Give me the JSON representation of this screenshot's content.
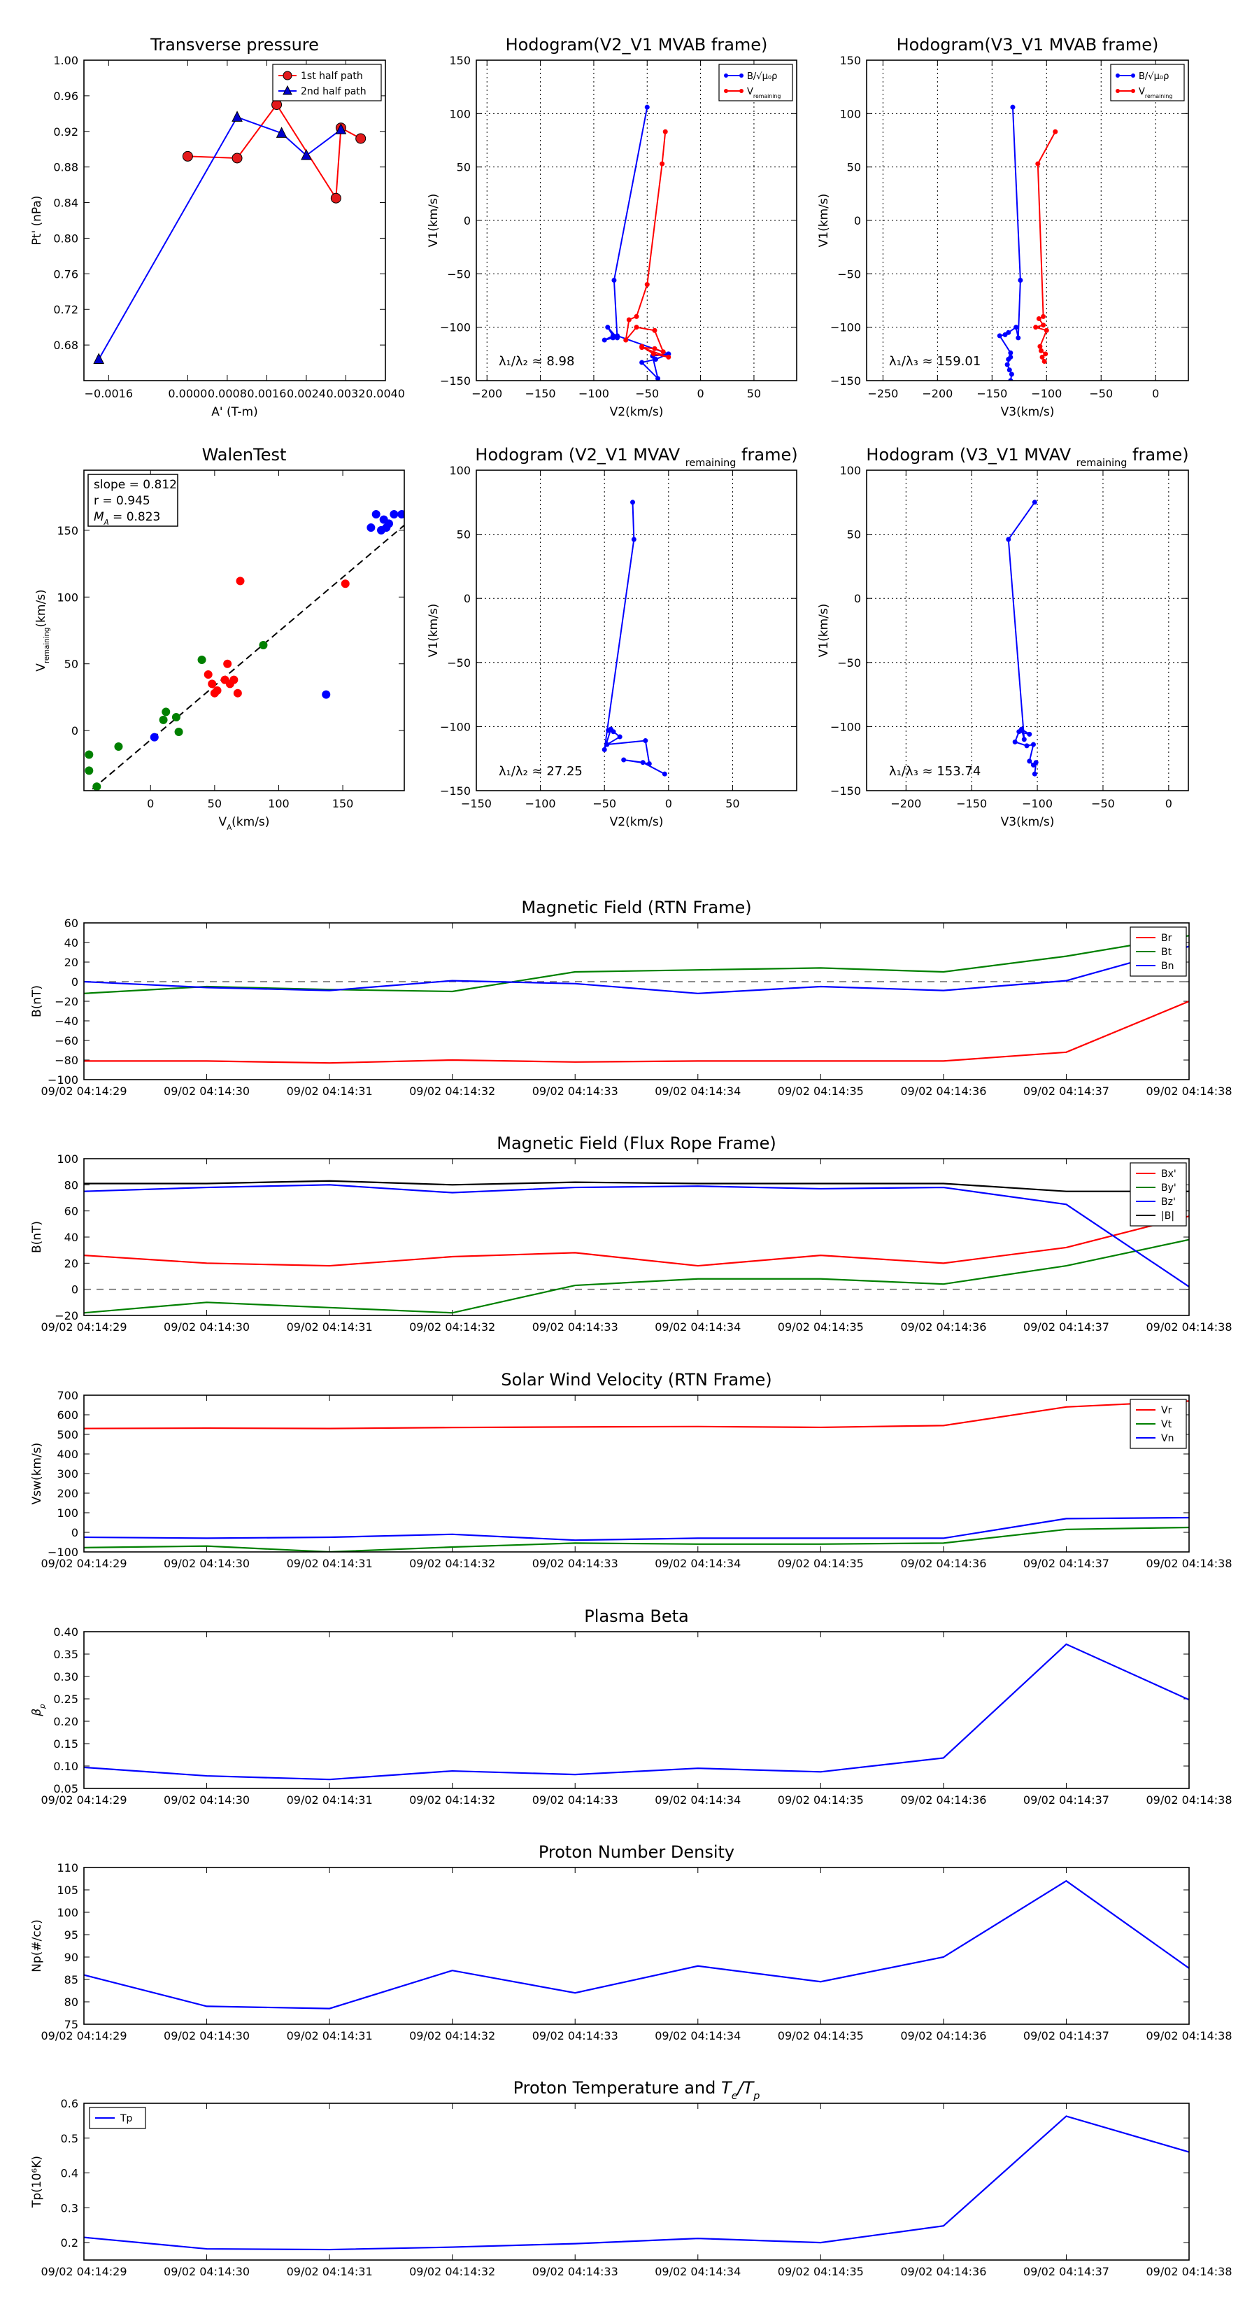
{
  "colors": {
    "red": "#ff0000",
    "green": "#008000",
    "blue": "#0000ff",
    "black": "#000000",
    "marker_red": "#e31a1c",
    "marker_blue": "#0000cc"
  },
  "time_labels": [
    "09/02 04:14:29",
    "09/02 04:14:30",
    "09/02 04:14:31",
    "09/02 04:14:32",
    "09/02 04:14:33",
    "09/02 04:14:34",
    "09/02 04:14:35",
    "09/02 04:14:36",
    "09/02 04:14:37",
    "09/02 04:14:38"
  ],
  "chart_data": [
    {
      "id": "transverse",
      "type": "line",
      "title": "Transverse pressure",
      "xlabel": "A' (T-m)",
      "ylabel": "Pt' (nPa)",
      "xlim": [
        -0.0021,
        0.004
      ],
      "ylim": [
        0.64,
        1.0
      ],
      "xticks": [
        -0.0016,
        0.0,
        0.0008,
        0.0016,
        0.0024,
        0.0032,
        0.004
      ],
      "xtick_labels": [
        "−0.0016",
        "0.0000",
        "0.0008",
        "0.0016",
        "0.0024",
        "0.0032",
        "0.0040"
      ],
      "yticks": [
        0.68,
        0.72,
        0.76,
        0.8,
        0.84,
        0.88,
        0.92,
        0.96,
        1.0
      ],
      "ytick_labels": [
        "0.68",
        "0.72",
        "0.76",
        "0.80",
        "0.84",
        "0.88",
        "0.92",
        "0.96",
        "1.00"
      ],
      "legend": "upper right",
      "series": [
        {
          "name": "1st half path",
          "color": "red",
          "marker": "circle",
          "x": [
            0.0,
            0.001,
            0.0018,
            0.003,
            0.0031,
            0.0035
          ],
          "y": [
            0.892,
            0.89,
            0.95,
            0.845,
            0.924,
            0.912
          ]
        },
        {
          "name": "2nd half path",
          "color": "blue",
          "marker": "triangle",
          "x": [
            -0.0018,
            0.001,
            0.0019,
            0.0024,
            0.0031
          ],
          "y": [
            0.664,
            0.936,
            0.918,
            0.893,
            0.922
          ]
        }
      ]
    },
    {
      "id": "hodo_v2_mvab",
      "type": "line",
      "title": "Hodogram(V2_V1 MVAB frame)",
      "xlabel": "V2(km/s)",
      "ylabel": "V1(km/s)",
      "xlim": [
        -210,
        90
      ],
      "ylim": [
        -150,
        150
      ],
      "xticks": [
        -200,
        -150,
        -100,
        -50,
        0,
        50
      ],
      "xtick_labels": [
        "−200",
        "−150",
        "−100",
        "−50",
        "0",
        "50"
      ],
      "yticks": [
        -150,
        -100,
        -50,
        0,
        50,
        100,
        150
      ],
      "ytick_labels": [
        "−150",
        "−100",
        "−50",
        "0",
        "50",
        "100",
        "150"
      ],
      "grid": true,
      "legend": "upper right",
      "legend_labels": [
        "B/√μ₀ρ",
        "V"
      ],
      "legend_label_subs": [
        "",
        "remaining"
      ],
      "annotation": "λ₁/λ₂ ≈ 8.98",
      "series": [
        {
          "name": "B/√μ₀ρ",
          "color": "blue",
          "marker": "dot",
          "x": [
            -50,
            -81,
            -78,
            -87,
            -82,
            -90,
            -82,
            -78,
            -30,
            -42,
            -55,
            -40,
            -45,
            -30
          ],
          "y": [
            106,
            -56,
            -110,
            -100,
            -108,
            -112,
            -110,
            -108,
            -125,
            -130,
            -133,
            -148,
            -127,
            -125
          ]
        },
        {
          "name": "Vremaining",
          "color": "red",
          "marker": "dot",
          "x": [
            -33,
            -36,
            -50,
            -60,
            -67,
            -70,
            -60,
            -43,
            -35,
            -43,
            -55,
            -30,
            -44,
            -55
          ],
          "y": [
            83,
            53,
            -60,
            -90,
            -93,
            -112,
            -100,
            -103,
            -123,
            -120,
            -119,
            -128,
            -125,
            -118
          ]
        }
      ]
    },
    {
      "id": "hodo_v3_mvab",
      "type": "line",
      "title": "Hodogram(V3_V1 MVAB frame)",
      "xlabel": "V3(km/s)",
      "ylabel": "V1(km/s)",
      "xlim": [
        -265,
        30
      ],
      "ylim": [
        -150,
        150
      ],
      "xticks": [
        -250,
        -200,
        -150,
        -100,
        -50,
        0
      ],
      "xtick_labels": [
        "−250",
        "−200",
        "−150",
        "−100",
        "−50",
        "0"
      ],
      "yticks": [
        -150,
        -100,
        -50,
        0,
        50,
        100,
        150
      ],
      "ytick_labels": [
        "−150",
        "−100",
        "−50",
        "0",
        "50",
        "100",
        "150"
      ],
      "grid": true,
      "legend": "upper right",
      "legend_labels": [
        "B/√μ₀ρ",
        "V"
      ],
      "legend_label_subs": [
        "",
        "remaining"
      ],
      "annotation": "λ₁/λ₃ ≈ 159.01",
      "series": [
        {
          "name": "B/√μ₀ρ",
          "color": "blue",
          "marker": "dot",
          "x": [
            -131,
            -124,
            -126,
            -128,
            -135,
            -138,
            -143,
            -133,
            -135,
            -133,
            -136,
            -134,
            -132,
            -133
          ],
          "y": [
            106,
            -56,
            -110,
            -100,
            -105,
            -107,
            -108,
            -124,
            -130,
            -128,
            -135,
            -140,
            -144,
            -150
          ]
        },
        {
          "name": "Vremaining",
          "color": "red",
          "marker": "dot",
          "x": [
            -92,
            -108,
            -103,
            -107,
            -103,
            -110,
            -100,
            -106,
            -105,
            -101,
            -104,
            -102
          ],
          "y": [
            83,
            53,
            -90,
            -92,
            -98,
            -100,
            -103,
            -118,
            -122,
            -125,
            -128,
            -132
          ]
        }
      ]
    },
    {
      "id": "walen",
      "type": "scatter",
      "title": "WalenTest",
      "xlabel": "V",
      "xlabel_sub": "A",
      "xlabel_unit": "(km/s)",
      "ylabel": "V",
      "ylabel_sub": "remaining",
      "ylabel_unit": "(km/s)",
      "xlim": [
        -52,
        198
      ],
      "ylim": [
        -45,
        195
      ],
      "xticks": [
        0,
        50,
        100,
        150
      ],
      "xtick_labels": [
        "0",
        "50",
        "100",
        "150"
      ],
      "yticks": [
        0,
        50,
        100,
        150
      ],
      "ytick_labels": [
        "0",
        "50",
        "100",
        "150"
      ],
      "stats": [
        "slope = 0.812",
        "r = 0.945",
        "M",
        "= 0.823"
      ],
      "stats_sub": "A",
      "fit": {
        "slope": 0.812,
        "intercept": -7
      },
      "series": [
        {
          "name": "green",
          "color": "green",
          "x": [
            -48,
            -48,
            -42,
            -25,
            10,
            12,
            20,
            22,
            40,
            88
          ],
          "y": [
            -18,
            -30,
            -42,
            -12,
            8,
            14,
            10,
            -1,
            53,
            64
          ]
        },
        {
          "name": "red",
          "color": "red",
          "x": [
            45,
            48,
            50,
            52,
            58,
            60,
            62,
            65,
            68,
            70,
            152
          ],
          "y": [
            42,
            35,
            28,
            30,
            38,
            50,
            35,
            38,
            28,
            112,
            110
          ]
        },
        {
          "name": "blue",
          "color": "blue",
          "x": [
            3,
            137,
            172,
            176,
            180,
            182,
            184,
            186,
            190,
            196
          ],
          "y": [
            -5,
            27,
            152,
            162,
            150,
            158,
            152,
            155,
            162,
            162
          ]
        }
      ]
    },
    {
      "id": "hodo_v2_mvav",
      "type": "line",
      "title": "Hodogram (V2_V1 MVAV",
      "title_sub": "remaining",
      "title_tail": "frame)",
      "xlabel": "V2(km/s)",
      "ylabel": "V1(km/s)",
      "xlim": [
        -150,
        100
      ],
      "ylim": [
        -150,
        100
      ],
      "xticks": [
        -150,
        -100,
        -50,
        0,
        50
      ],
      "xtick_labels": [
        "−150",
        "−100",
        "−50",
        "0",
        "50"
      ],
      "yticks": [
        -150,
        -100,
        -50,
        0,
        50,
        100
      ],
      "ytick_labels": [
        "−150",
        "−100",
        "−50",
        "0",
        "50",
        "100"
      ],
      "grid": true,
      "annotation": "λ₁/λ₂ ≈ 27.25",
      "series": [
        {
          "name": "B",
          "color": "blue",
          "marker": "dot",
          "x": [
            -28,
            -27,
            -50,
            -45,
            -47,
            -43,
            -38,
            -48,
            -18,
            -15,
            -35,
            -20,
            -3
          ],
          "y": [
            75,
            46,
            -118,
            -102,
            -103,
            -104,
            -108,
            -114,
            -111,
            -129,
            -126,
            -128,
            -137
          ]
        }
      ]
    },
    {
      "id": "hodo_v3_mvav",
      "type": "line",
      "title": "Hodogram (V3_V1 MVAV",
      "title_sub": "remaining",
      "title_tail": "frame)",
      "xlabel": "V3(km/s)",
      "ylabel": "V1(km/s)",
      "xlim": [
        -230,
        15
      ],
      "ylim": [
        -150,
        100
      ],
      "xticks": [
        -200,
        -150,
        -100,
        -50,
        0
      ],
      "xtick_labels": [
        "−200",
        "−150",
        "−100",
        "−50",
        "0"
      ],
      "yticks": [
        -150,
        -100,
        -50,
        0,
        50,
        100
      ],
      "ytick_labels": [
        "−150",
        "−100",
        "−50",
        "0",
        "50",
        "100"
      ],
      "grid": true,
      "annotation": "λ₁/λ₃ ≈ 153.74",
      "series": [
        {
          "name": "B",
          "color": "blue",
          "marker": "dot",
          "x": [
            -102,
            -122,
            -110,
            -112,
            -106,
            -114,
            -117,
            -108,
            -103,
            -106,
            -103,
            -101,
            -102
          ],
          "y": [
            75,
            46,
            -110,
            -102,
            -106,
            -104,
            -112,
            -115,
            -114,
            -127,
            -130,
            -128,
            -137
          ]
        }
      ]
    },
    {
      "id": "mag_rtn",
      "type": "line",
      "title": "Magnetic Field (RTN Frame)",
      "ylabel": "B(nT)",
      "ylim": [
        -100,
        60
      ],
      "yticks": [
        -100,
        -80,
        -60,
        -40,
        -20,
        0,
        20,
        40,
        60
      ],
      "ytick_labels": [
        "−100",
        "−80",
        "−60",
        "−40",
        "−20",
        "0",
        "20",
        "40",
        "60"
      ],
      "zero_line": true,
      "legend": "upper right",
      "series": [
        {
          "name": "Br",
          "color": "red",
          "values": [
            -81,
            -81,
            -83,
            -80,
            -82,
            -81,
            -81,
            -81,
            -72,
            -20
          ]
        },
        {
          "name": "Bt",
          "color": "green",
          "values": [
            -12,
            -5,
            -8,
            -10,
            10,
            12,
            14,
            10,
            26,
            47
          ]
        },
        {
          "name": "Bn",
          "color": "blue",
          "values": [
            0,
            -6,
            -9,
            1,
            -2,
            -12,
            -5,
            -9,
            1,
            36
          ]
        }
      ]
    },
    {
      "id": "mag_fr",
      "type": "line",
      "title": "Magnetic Field (Flux Rope Frame)",
      "ylabel": "B(nT)",
      "ylim": [
        -20,
        100
      ],
      "yticks": [
        -20,
        0,
        20,
        40,
        60,
        80,
        100
      ],
      "ytick_labels": [
        "−20",
        "0",
        "20",
        "40",
        "60",
        "80",
        "100"
      ],
      "zero_line": true,
      "legend": "upper right",
      "series": [
        {
          "name": "Bx'",
          "color": "red",
          "values": [
            26,
            20,
            18,
            25,
            28,
            18,
            26,
            20,
            32,
            56
          ]
        },
        {
          "name": "By'",
          "color": "green",
          "values": [
            -18,
            -10,
            -14,
            -18,
            3,
            8,
            8,
            4,
            18,
            38
          ]
        },
        {
          "name": "Bz'",
          "color": "blue",
          "values": [
            75,
            78,
            80,
            74,
            78,
            79,
            77,
            78,
            65,
            2
          ]
        },
        {
          "name": "|B|",
          "color": "black",
          "values": [
            81,
            81,
            83,
            80,
            82,
            81,
            81,
            81,
            75,
            75
          ]
        }
      ]
    },
    {
      "id": "vsw",
      "type": "line",
      "title": "Solar Wind Velocity (RTN Frame)",
      "ylabel": "Vsw(km/s)",
      "ylim": [
        -100,
        700
      ],
      "yticks": [
        -100,
        0,
        100,
        200,
        300,
        400,
        500,
        600,
        700
      ],
      "ytick_labels": [
        "−100",
        "0",
        "100",
        "200",
        "300",
        "400",
        "500",
        "600",
        "700"
      ],
      "legend": "upper right",
      "series": [
        {
          "name": "Vr",
          "color": "red",
          "values": [
            530,
            532,
            530,
            535,
            538,
            540,
            536,
            545,
            640,
            670
          ]
        },
        {
          "name": "Vt",
          "color": "green",
          "values": [
            -78,
            -70,
            -100,
            -75,
            -55,
            -60,
            -60,
            -55,
            15,
            25
          ]
        },
        {
          "name": "Vn",
          "color": "blue",
          "values": [
            -25,
            -30,
            -25,
            -10,
            -40,
            -30,
            -30,
            -30,
            70,
            75
          ]
        }
      ]
    },
    {
      "id": "beta",
      "type": "line",
      "title": "Plasma Beta",
      "ylabel": "β",
      "ylabel_sub": "p",
      "ylim": [
        0.05,
        0.4
      ],
      "yticks": [
        0.05,
        0.1,
        0.15,
        0.2,
        0.25,
        0.3,
        0.35,
        0.4
      ],
      "ytick_labels": [
        "0.05",
        "0.10",
        "0.15",
        "0.20",
        "0.25",
        "0.30",
        "0.35",
        "0.40"
      ],
      "series": [
        {
          "name": "beta",
          "color": "blue",
          "values": [
            0.097,
            0.078,
            0.07,
            0.089,
            0.081,
            0.095,
            0.087,
            0.118,
            0.372,
            0.248
          ]
        }
      ]
    },
    {
      "id": "np",
      "type": "line",
      "title": "Proton Number Density",
      "ylabel": "Np(#/cc)",
      "ylim": [
        75,
        110
      ],
      "yticks": [
        75,
        80,
        85,
        90,
        95,
        100,
        105,
        110
      ],
      "ytick_labels": [
        "75",
        "80",
        "85",
        "90",
        "95",
        "100",
        "105",
        "110"
      ],
      "series": [
        {
          "name": "Np",
          "color": "blue",
          "values": [
            86,
            79,
            78.5,
            87,
            82,
            88,
            84.5,
            90,
            107,
            87.5
          ]
        }
      ]
    },
    {
      "id": "tp",
      "type": "line",
      "title": "Proton Temperature and",
      "title_math": "T",
      "title_sub1": "e",
      "title_mid": "/T",
      "title_sub2": "p",
      "ylabel": "Tp(10⁶K)",
      "ylim": [
        0.15,
        0.6
      ],
      "yticks": [
        0.2,
        0.3,
        0.4,
        0.5,
        0.6
      ],
      "ytick_labels": [
        "0.2",
        "0.3",
        "0.4",
        "0.5",
        "0.6"
      ],
      "legend": "upper left",
      "series": [
        {
          "name": "Tp",
          "color": "blue",
          "values": [
            0.215,
            0.182,
            0.18,
            0.187,
            0.197,
            0.212,
            0.2,
            0.248,
            0.563,
            0.46
          ]
        }
      ]
    }
  ]
}
